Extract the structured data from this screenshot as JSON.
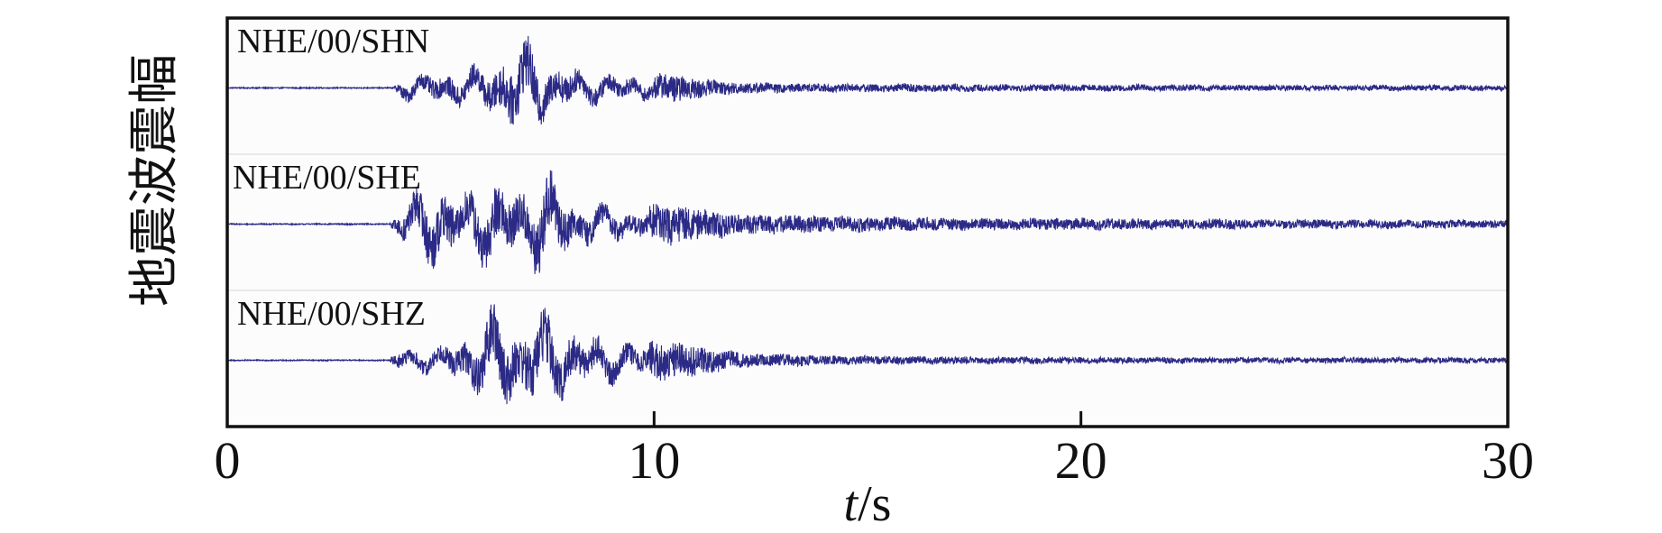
{
  "chart_data": {
    "type": "line",
    "title": "",
    "xlabel_italic": "t",
    "xlabel_unit": "/s",
    "ylabel": "地震波震幅",
    "xlim": [
      0,
      30
    ],
    "xticks": [
      "0",
      "10",
      "20",
      "30"
    ],
    "xtick_values": [
      0,
      10,
      20,
      30
    ],
    "grid": false,
    "legend": "none",
    "series_color": "#2b2a86",
    "series": [
      {
        "name": "NHE/00/SHN",
        "onset_s": 4.0,
        "peak_time_s": 6.9,
        "envelope": [
          [
            0.0,
            0.01
          ],
          [
            3.9,
            0.01
          ],
          [
            4.1,
            0.22
          ],
          [
            5.0,
            0.32
          ],
          [
            6.0,
            0.42
          ],
          [
            6.9,
            0.95
          ],
          [
            7.5,
            0.55
          ],
          [
            8.5,
            0.32
          ],
          [
            10.0,
            0.22
          ],
          [
            10.4,
            0.25
          ],
          [
            11.5,
            0.12
          ],
          [
            13.0,
            0.08
          ],
          [
            16.0,
            0.07
          ],
          [
            20.0,
            0.06
          ],
          [
            25.0,
            0.05
          ],
          [
            30.0,
            0.05
          ]
        ]
      },
      {
        "name": "NHE/00/SHE",
        "onset_s": 3.9,
        "peak_time_s": 7.45,
        "envelope": [
          [
            0.0,
            0.01
          ],
          [
            3.8,
            0.01
          ],
          [
            4.0,
            0.3
          ],
          [
            4.8,
            0.85
          ],
          [
            5.5,
            0.6
          ],
          [
            6.2,
            0.88
          ],
          [
            6.9,
            0.7
          ],
          [
            7.45,
            1.0
          ],
          [
            8.2,
            0.45
          ],
          [
            9.5,
            0.3
          ],
          [
            10.3,
            0.35
          ],
          [
            12.0,
            0.18
          ],
          [
            14.0,
            0.14
          ],
          [
            18.0,
            0.1
          ],
          [
            20.0,
            0.1
          ],
          [
            25.0,
            0.08
          ],
          [
            30.0,
            0.07
          ]
        ]
      },
      {
        "name": "NHE/00/SHZ",
        "onset_s": 3.9,
        "peak_time_s": 6.3,
        "envelope": [
          [
            0.0,
            0.01
          ],
          [
            3.8,
            0.01
          ],
          [
            4.0,
            0.22
          ],
          [
            5.0,
            0.28
          ],
          [
            5.8,
            0.6
          ],
          [
            6.3,
            1.0
          ],
          [
            6.8,
            0.75
          ],
          [
            7.4,
            0.95
          ],
          [
            8.2,
            0.55
          ],
          [
            9.5,
            0.35
          ],
          [
            10.6,
            0.32
          ],
          [
            12.0,
            0.13
          ],
          [
            14.0,
            0.08
          ],
          [
            18.0,
            0.06
          ],
          [
            25.0,
            0.05
          ],
          [
            30.0,
            0.05
          ]
        ]
      }
    ]
  }
}
